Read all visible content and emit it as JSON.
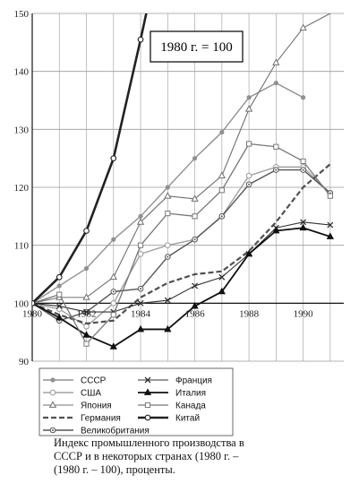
{
  "chart_data": {
    "type": "line",
    "title": "",
    "xlabel": "",
    "ylabel": "",
    "xlim": [
      1980,
      1991.5
    ],
    "ylim": [
      90,
      150
    ],
    "x_ticks": [
      1980,
      1982,
      1984,
      1986,
      1988,
      1990
    ],
    "y_ticks": [
      90,
      100,
      110,
      120,
      130,
      140,
      150
    ],
    "x": [
      1980,
      1981,
      1982,
      1983,
      1984,
      1985,
      1986,
      1987,
      1988,
      1989,
      1990,
      1991
    ],
    "grid": true,
    "base_note": "1980 г. = 100",
    "legend_position": "bottom",
    "series": [
      {
        "name": "СССР",
        "values": [
          100,
          103,
          106,
          111,
          115,
          120,
          125,
          129.5,
          135.5,
          138,
          135.5,
          null
        ],
        "color": "#909090",
        "dash": "",
        "width": 1.4,
        "marker": "dot"
      },
      {
        "name": "США",
        "values": [
          100,
          99,
          96,
          100,
          108.5,
          110,
          111,
          115,
          122,
          123.5,
          123.5,
          119
        ],
        "color": "#a0a0a0",
        "dash": "",
        "width": 1.4,
        "marker": "ring"
      },
      {
        "name": "Япония",
        "values": [
          100,
          101,
          101,
          104.5,
          114,
          118.5,
          118,
          122,
          133.5,
          141.5,
          147.5,
          150
        ],
        "color": "#707070",
        "dash": "",
        "width": 1.1,
        "marker": "triangle"
      },
      {
        "name": "Германия",
        "values": [
          100,
          98,
          96.5,
          97,
          101,
          103.5,
          105,
          105.5,
          109,
          114,
          120,
          124
        ],
        "color": "#505050",
        "dash": "6,3",
        "width": 2.2,
        "marker": "none"
      },
      {
        "name": "Великобритания",
        "values": [
          100,
          97,
          98.5,
          102,
          102.5,
          108,
          111,
          115,
          120.5,
          123,
          123,
          119
        ],
        "color": "#555555",
        "dash": "",
        "width": 1.4,
        "marker": "ringdot"
      },
      {
        "name": "Франция",
        "values": [
          100,
          99.5,
          98.5,
          98.5,
          100,
          100.5,
          103,
          104.5,
          108.5,
          113,
          114,
          113.5
        ],
        "color": "#333333",
        "dash": "",
        "width": 1.1,
        "marker": "x"
      },
      {
        "name": "Италия",
        "values": [
          100,
          97.5,
          94.5,
          92.5,
          95.5,
          95.5,
          99.5,
          102,
          108.5,
          112.5,
          113,
          111.5
        ],
        "color": "#111111",
        "dash": "",
        "width": 1.8,
        "marker": "triangle-filled"
      },
      {
        "name": "Канада",
        "values": [
          100,
          101.5,
          93,
          98,
          110,
          115.5,
          115,
          119.5,
          127.5,
          127,
          124.5,
          118.5
        ],
        "color": "#777777",
        "dash": "",
        "width": 1.3,
        "marker": "square"
      },
      {
        "name": "Китай",
        "values": [
          100,
          104.5,
          112.5,
          125,
          145.5,
          167,
          null,
          null,
          null,
          null,
          null,
          null
        ],
        "color": "#222222",
        "dash": "",
        "width": 2.6,
        "marker": "ring"
      }
    ]
  },
  "caption": {
    "line1": "Индекс промышленного производства в",
    "line2": "СССР и в некоторых странах (1980 г. –",
    "line3": "(1980 г. – 100), проценты."
  }
}
